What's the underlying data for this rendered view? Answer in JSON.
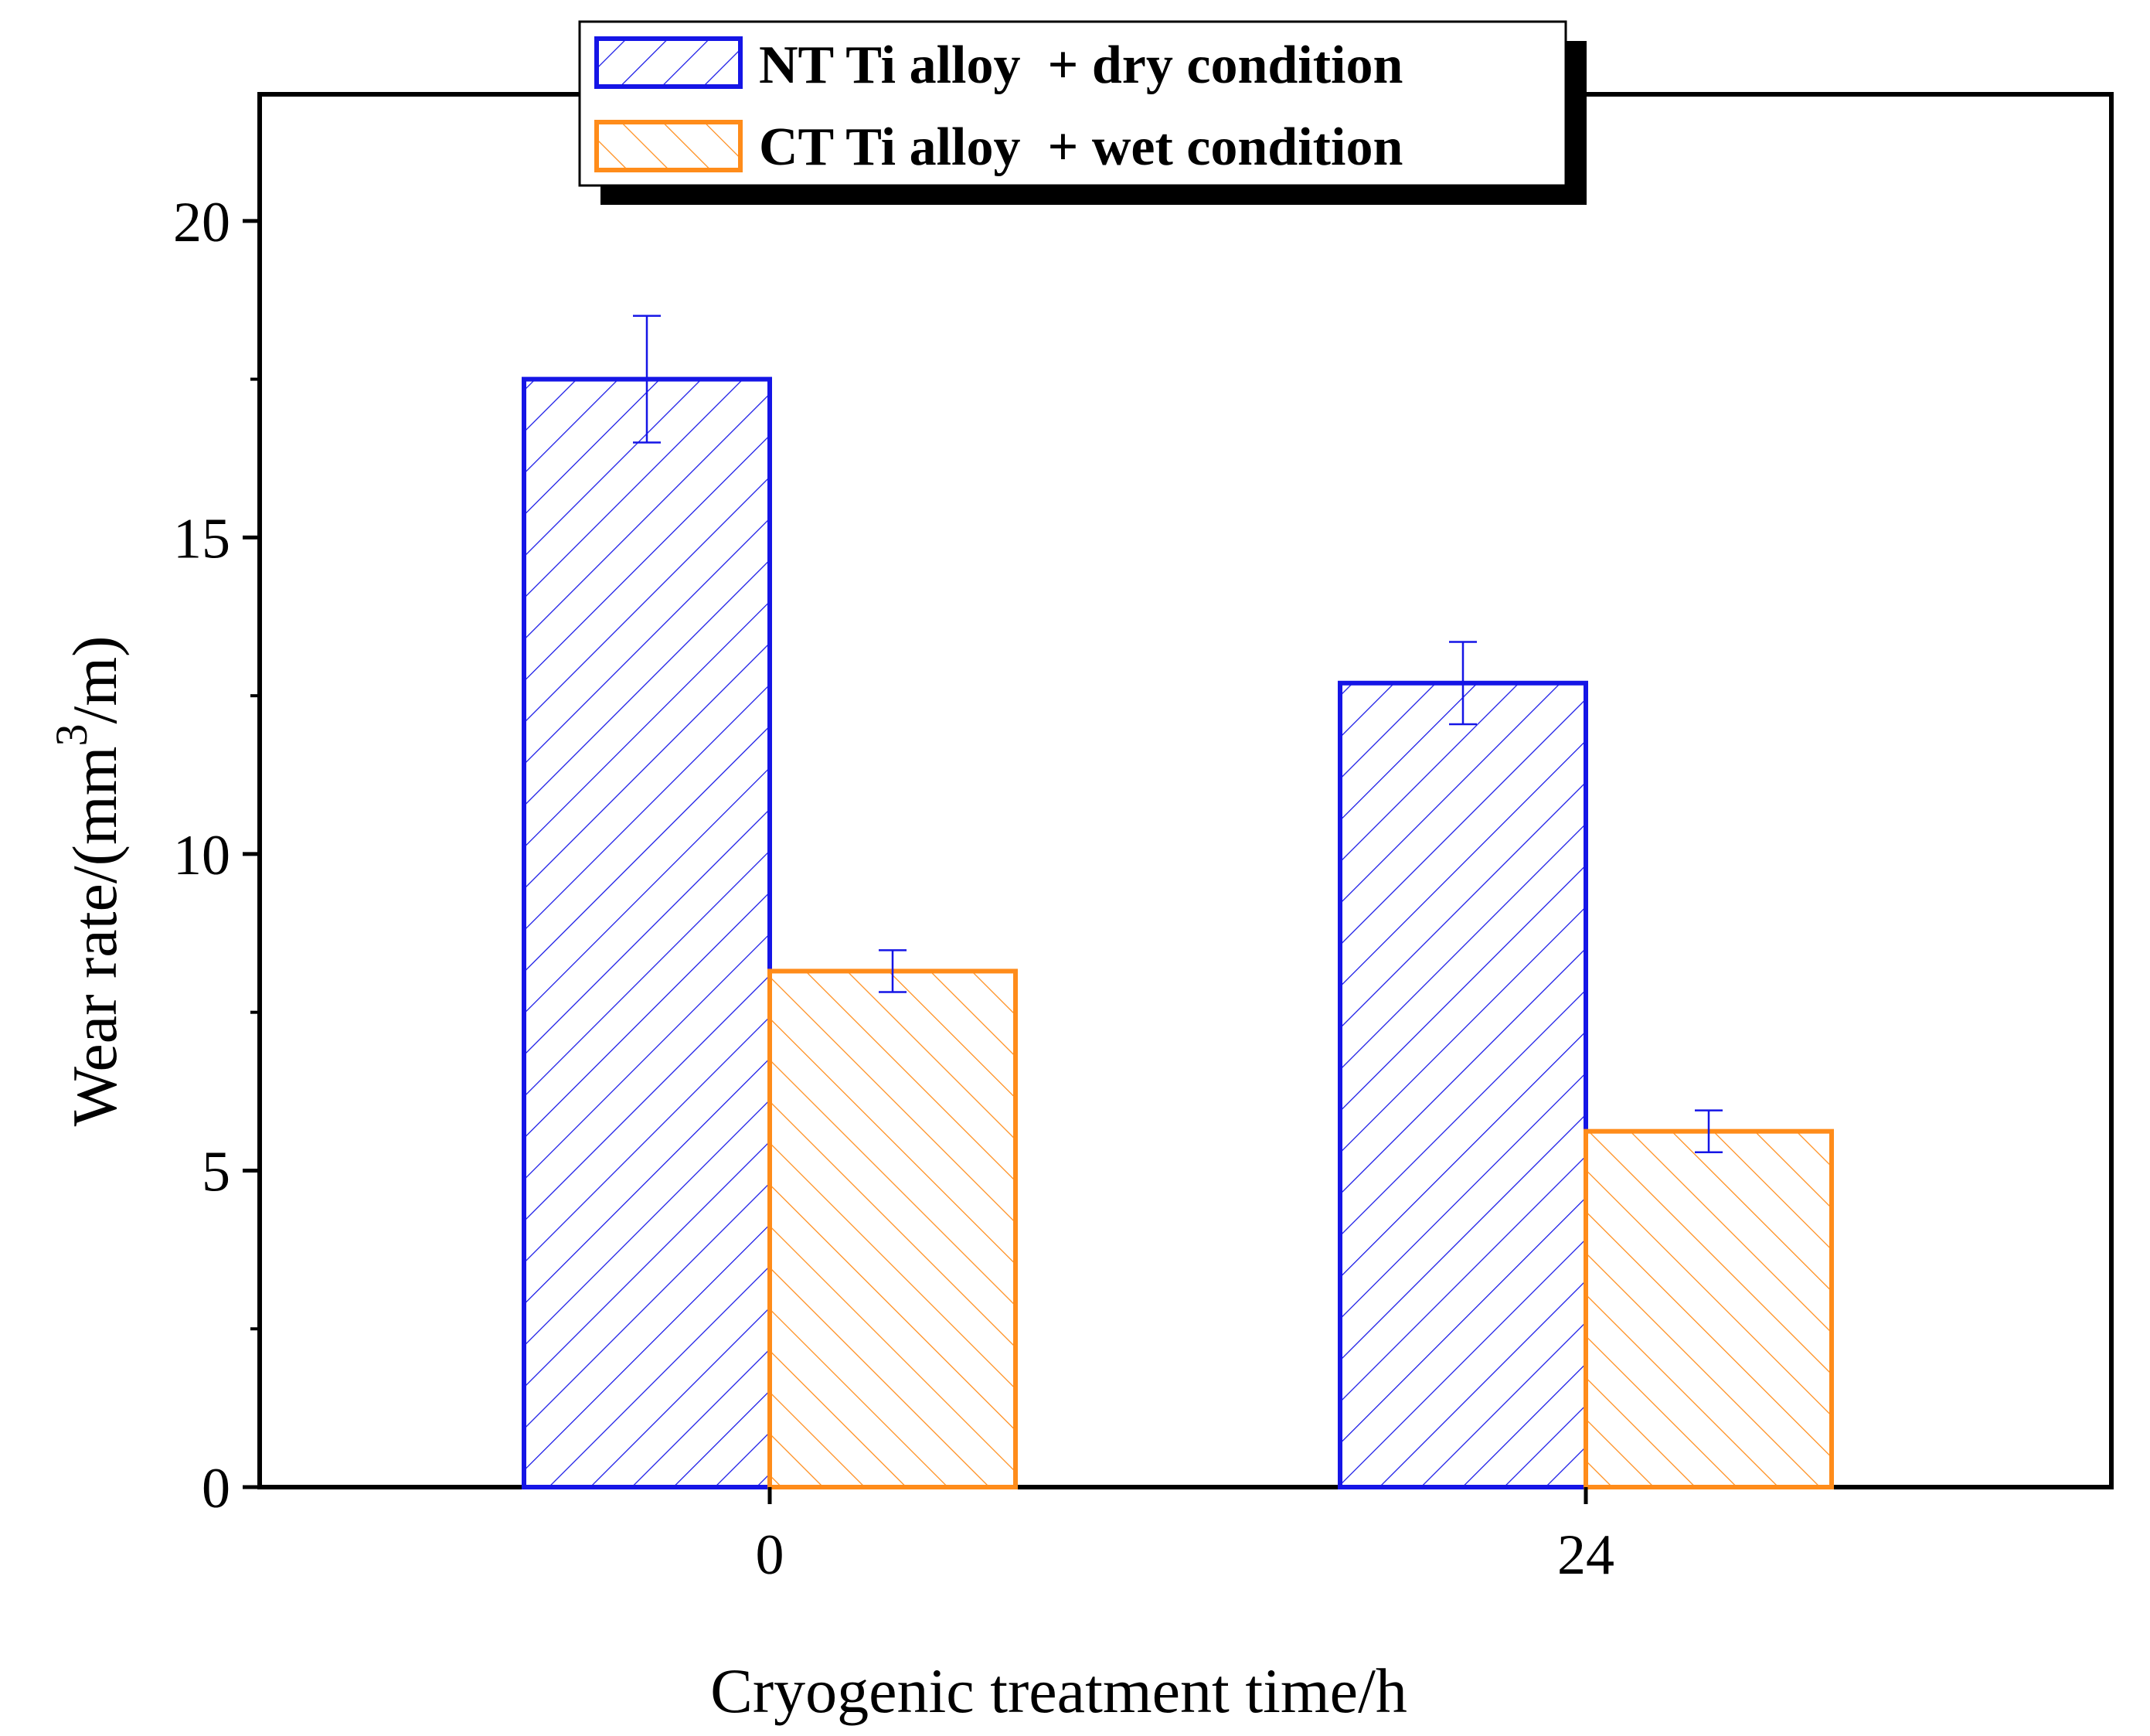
{
  "chart_data": {
    "type": "bar",
    "title": "",
    "xlabel": "Cryogenic treatment time/h",
    "ylabel": {
      "main": "Wear rate/(mm",
      "superscript": "3",
      "suffix": "/m)"
    },
    "categories": [
      "0",
      "24"
    ],
    "ylim": [
      0,
      22
    ],
    "yticks": [
      0,
      5,
      10,
      15,
      20
    ],
    "ytick_labels": [
      "0",
      "5",
      "10",
      "15",
      "20"
    ],
    "grid": false,
    "legend_position": "top-center",
    "series": [
      {
        "name": "NT Ti alloy  + dry condition",
        "color": "#1515e6",
        "hatch": "forward-diagonal",
        "values": [
          17.5,
          12.7
        ],
        "errors": [
          1.0,
          0.65
        ]
      },
      {
        "name": "CT Ti alloy  + wet condition",
        "color": "#ff8c1a",
        "hatch": "backward-diagonal",
        "values": [
          8.15,
          5.62
        ],
        "errors": [
          0.33,
          0.33
        ]
      }
    ]
  }
}
